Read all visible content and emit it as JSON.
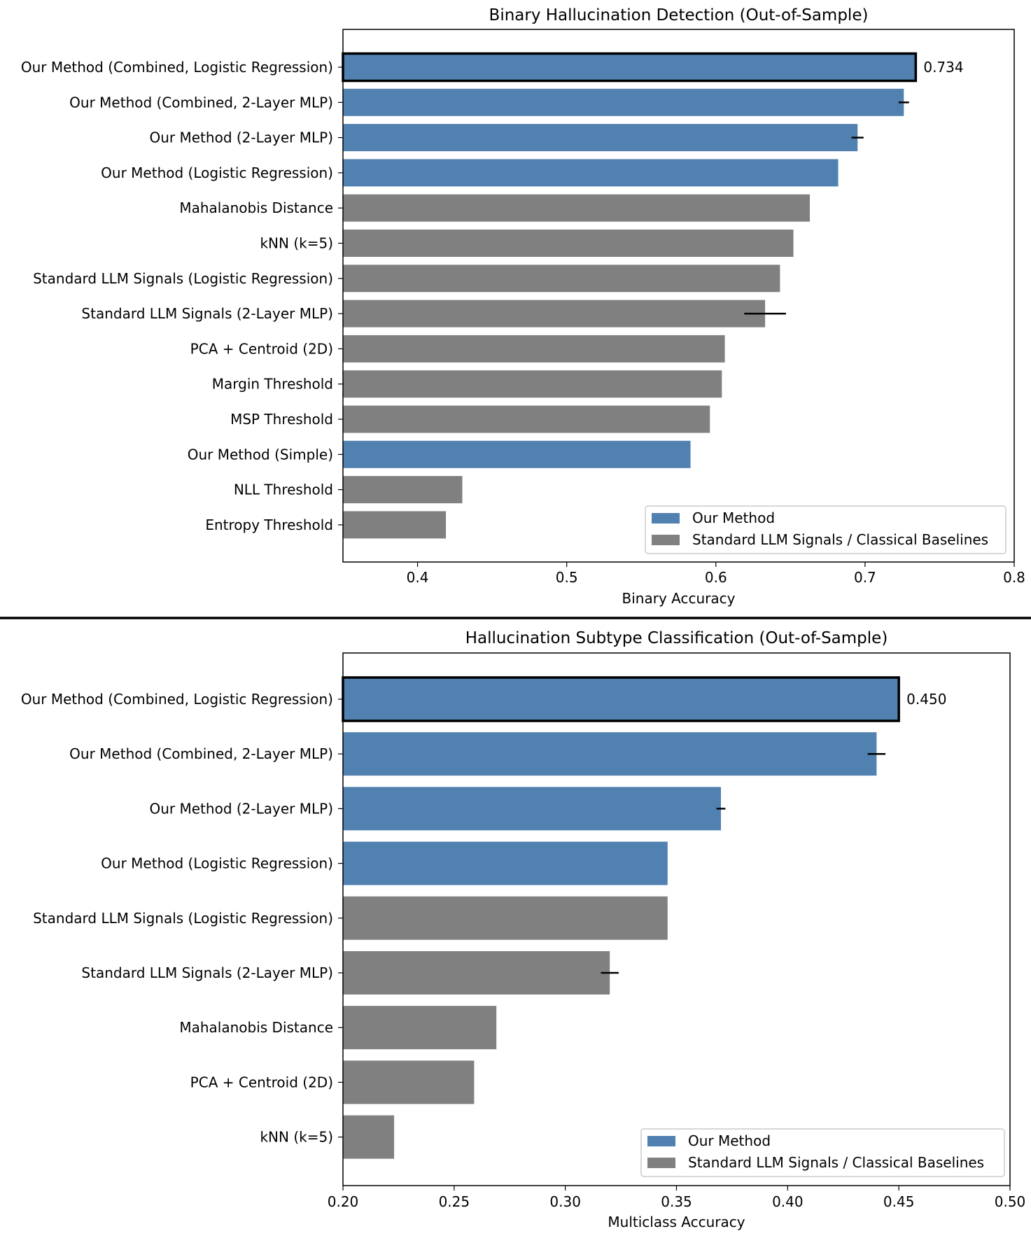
{
  "colors": {
    "ours": "#5181b1",
    "baseline": "#808080",
    "divider": "#000000"
  },
  "chart_data": [
    {
      "type": "bar",
      "orientation": "horizontal",
      "title": "Binary Hallucination Detection (Out-of-Sample)",
      "xlabel": "Binary Accuracy",
      "ylabel": "",
      "xlim": [
        0.35,
        0.8
      ],
      "xticks": [
        0.4,
        0.5,
        0.6,
        0.7,
        0.8
      ],
      "xtick_labels": [
        "0.4",
        "0.5",
        "0.6",
        "0.7",
        "0.8"
      ],
      "grid": false,
      "legend_position": "lower-right",
      "legend": [
        {
          "label": "Our Method",
          "group": "ours"
        },
        {
          "label": "Standard LLM Signals / Classical Baselines",
          "group": "baseline"
        }
      ],
      "categories": [
        "Our Method (Combined, Logistic Regression)",
        "Our Method (Combined, 2-Layer MLP)",
        "Our Method (2-Layer MLP)",
        "Our Method (Logistic Regression)",
        "Mahalanobis Distance",
        "kNN (k=5)",
        "Standard LLM Signals (Logistic Regression)",
        "Standard LLM Signals (2-Layer MLP)",
        "PCA + Centroid (2D)",
        "Margin Threshold",
        "MSP Threshold",
        "Our Method (Simple)",
        "NLL Threshold",
        "Entropy Threshold"
      ],
      "values": [
        0.734,
        0.726,
        0.695,
        0.682,
        0.663,
        0.652,
        0.643,
        0.633,
        0.606,
        0.604,
        0.596,
        0.583,
        0.43,
        0.419
      ],
      "errors": [
        0,
        0.0035,
        0.004,
        0,
        0,
        0,
        0,
        0.014,
        0,
        0,
        0,
        0,
        0,
        0
      ],
      "groups": [
        "ours",
        "ours",
        "ours",
        "ours",
        "baseline",
        "baseline",
        "baseline",
        "baseline",
        "baseline",
        "baseline",
        "baseline",
        "ours",
        "baseline",
        "baseline"
      ],
      "highlight_index": 0,
      "annotation": "0.734"
    },
    {
      "type": "bar",
      "orientation": "horizontal",
      "title": "Hallucination Subtype Classification (Out-of-Sample)",
      "xlabel": "Multiclass Accuracy",
      "ylabel": "",
      "xlim": [
        0.2,
        0.5
      ],
      "xticks": [
        0.2,
        0.25,
        0.3,
        0.35,
        0.4,
        0.45,
        0.5
      ],
      "xtick_labels": [
        "0.20",
        "0.25",
        "0.30",
        "0.35",
        "0.40",
        "0.45",
        "0.50"
      ],
      "grid": false,
      "legend_position": "lower-right",
      "legend": [
        {
          "label": "Our Method",
          "group": "ours"
        },
        {
          "label": "Standard LLM Signals / Classical Baselines",
          "group": "baseline"
        }
      ],
      "categories": [
        "Our Method (Combined, Logistic Regression)",
        "Our Method (Combined, 2-Layer MLP)",
        "Our Method (2-Layer MLP)",
        "Our Method (Logistic Regression)",
        "Standard LLM Signals (Logistic Regression)",
        "Standard LLM Signals (2-Layer MLP)",
        "Mahalanobis Distance",
        "PCA + Centroid (2D)",
        "kNN (k=5)"
      ],
      "values": [
        0.45,
        0.44,
        0.37,
        0.346,
        0.346,
        0.32,
        0.269,
        0.259,
        0.223
      ],
      "errors": [
        0,
        0.004,
        0.002,
        0,
        0,
        0.004,
        0,
        0,
        0
      ],
      "groups": [
        "ours",
        "ours",
        "ours",
        "ours",
        "baseline",
        "baseline",
        "baseline",
        "baseline",
        "baseline"
      ],
      "highlight_index": 0,
      "annotation": "0.450"
    }
  ]
}
